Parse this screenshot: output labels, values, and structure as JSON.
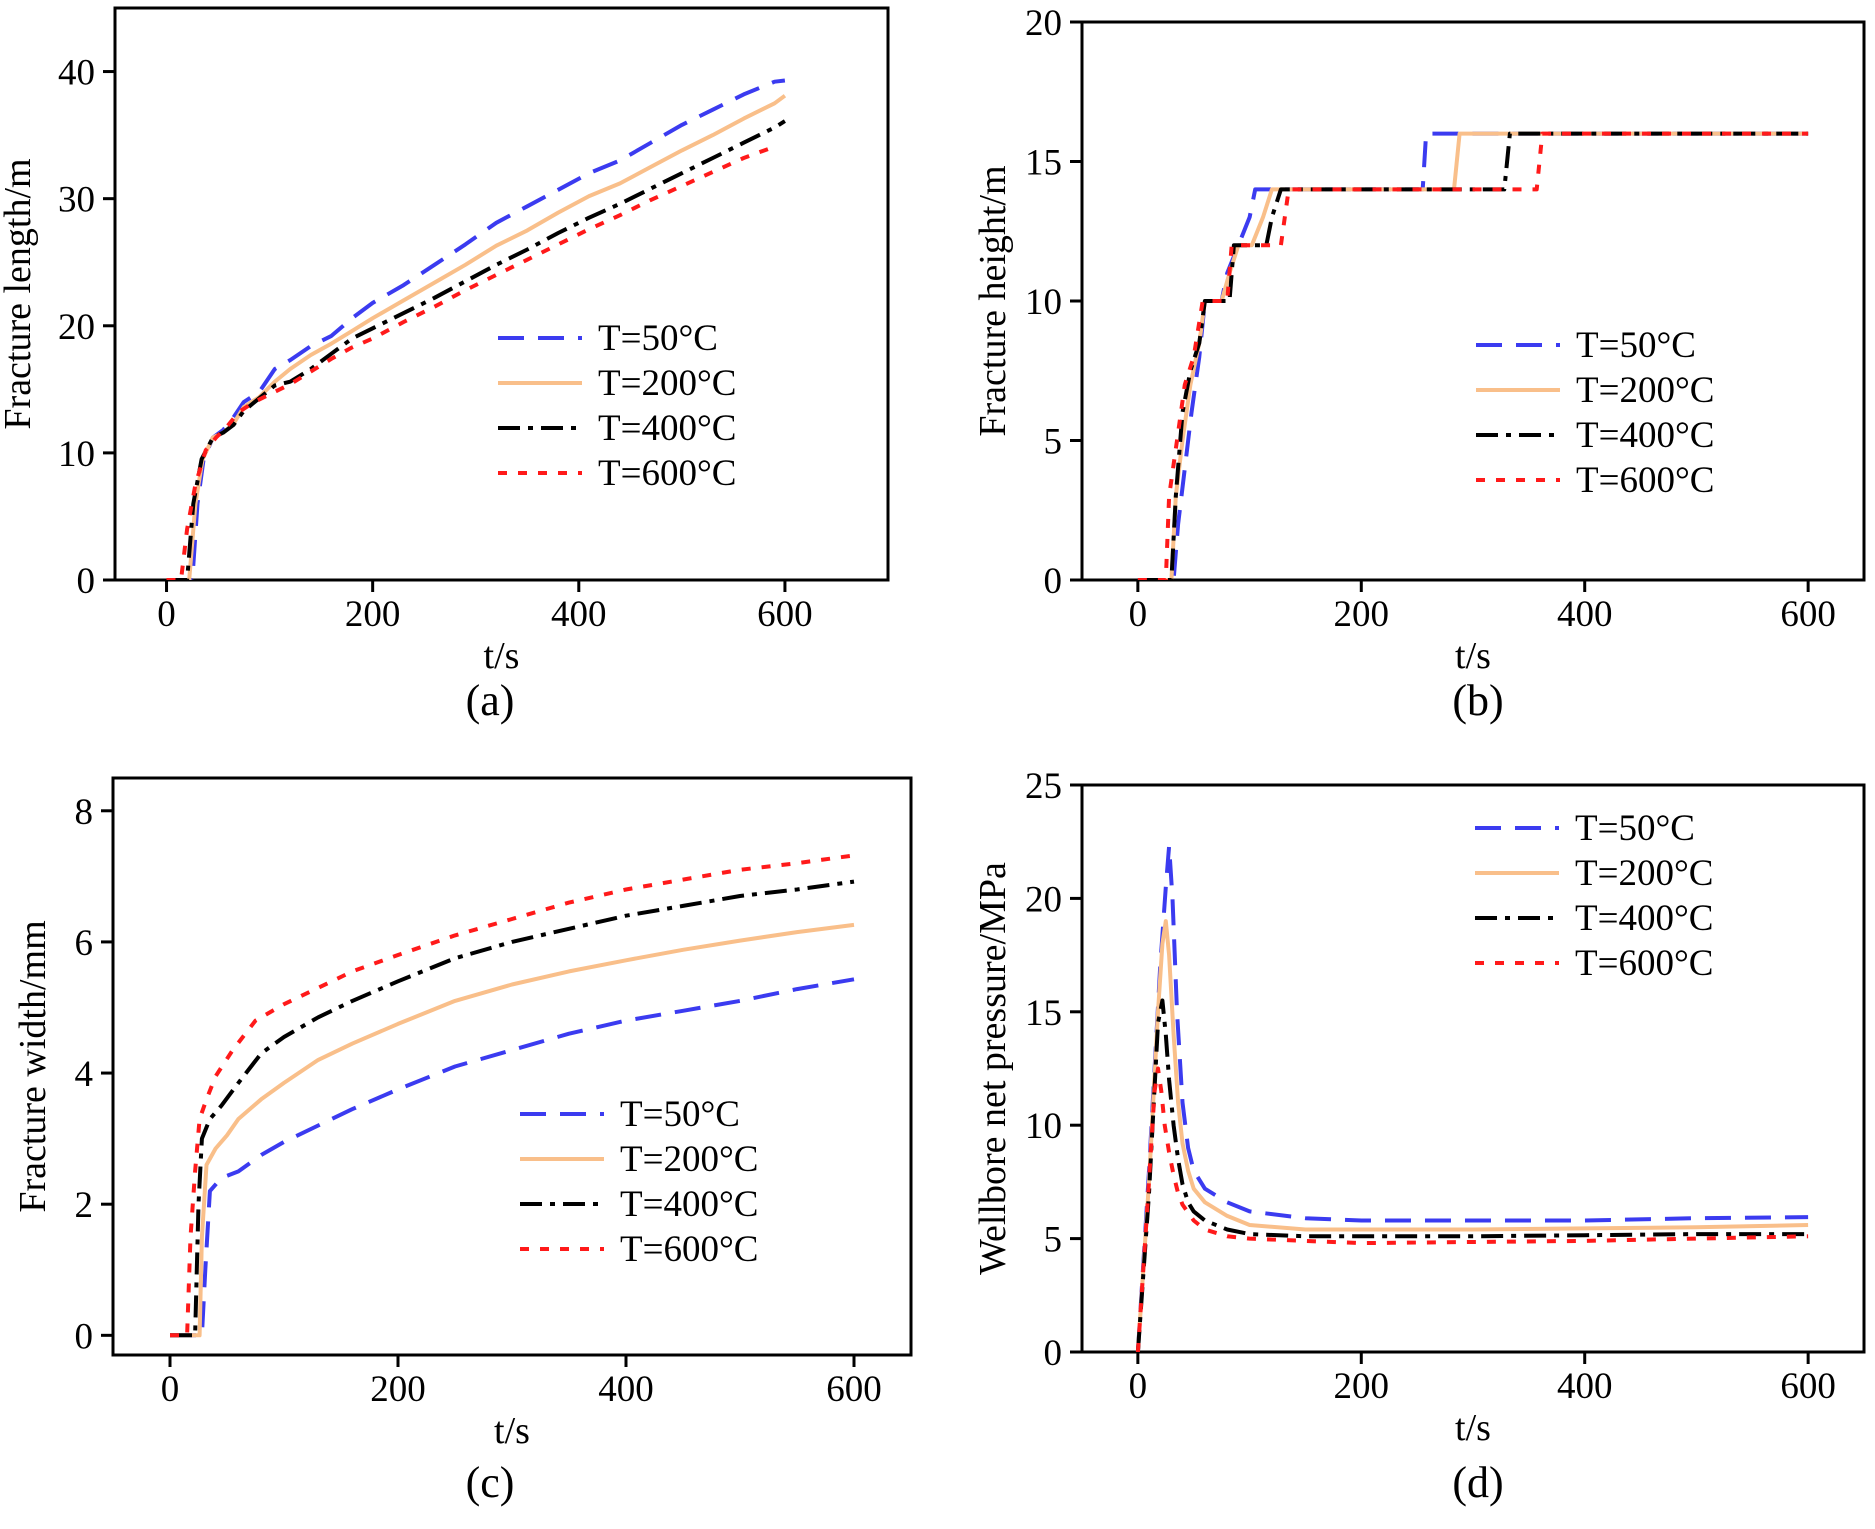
{
  "figure": {
    "panels": [
      "(a)",
      "(b)",
      "(c)",
      "(d)"
    ]
  },
  "legend_colors": {
    "T=50°C": "#3b3bf0",
    "T=200°C": "#f9bf8a",
    "T=400°C": "#000000",
    "T=600°C": "#ff1a1a"
  },
  "chart_data": [
    {
      "id": "a",
      "panel_label": "(a)",
      "type": "line",
      "title": "",
      "xlabel": "t/s",
      "ylabel": "Fracture length/m",
      "xlim": [
        -50,
        700
      ],
      "ylim": [
        0,
        45
      ],
      "xticks": [
        0,
        200,
        400,
        600
      ],
      "yticks": [
        0,
        10,
        20,
        30,
        40
      ],
      "grid": false,
      "legend_position": "lower-right",
      "series": [
        {
          "name": "T=50°C",
          "color": "#3b3bf0",
          "dash": "dash",
          "x": [
            0,
            25,
            30,
            36,
            45,
            55,
            65,
            75,
            90,
            105,
            120,
            140,
            160,
            180,
            200,
            230,
            260,
            290,
            320,
            350,
            380,
            410,
            440,
            470,
            500,
            530,
            560,
            590,
            600
          ],
          "y": [
            0,
            0,
            6,
            9.5,
            11.2,
            11.8,
            12.8,
            14,
            14.8,
            16.6,
            17.3,
            18.4,
            19.2,
            20.6,
            21.8,
            23.2,
            24.8,
            26.4,
            28.1,
            29.4,
            30.7,
            32,
            33,
            34.4,
            35.8,
            37,
            38.2,
            39.2,
            39.3
          ]
        },
        {
          "name": "T=200°C",
          "color": "#f9bf8a",
          "dash": "solid",
          "x": [
            0,
            22,
            28,
            35,
            45,
            55,
            65,
            75,
            90,
            105,
            120,
            140,
            160,
            180,
            200,
            230,
            260,
            290,
            320,
            350,
            380,
            410,
            440,
            470,
            500,
            530,
            560,
            590,
            600
          ],
          "y": [
            0,
            0,
            6,
            9.5,
            11.2,
            11.6,
            12.3,
            13.6,
            14.4,
            15.6,
            16.6,
            17.7,
            18.6,
            19.6,
            20.6,
            22,
            23.4,
            24.8,
            26.3,
            27.5,
            28.9,
            30.2,
            31.2,
            32.5,
            33.8,
            35,
            36.3,
            37.5,
            38.1
          ]
        },
        {
          "name": "T=400°C",
          "color": "#000000",
          "dash": "dashdot",
          "x": [
            0,
            20,
            26,
            34,
            45,
            55,
            65,
            75,
            90,
            105,
            120,
            140,
            160,
            180,
            200,
            230,
            260,
            290,
            320,
            350,
            380,
            410,
            440,
            470,
            500,
            530,
            560,
            590,
            600
          ],
          "y": [
            0,
            0,
            6,
            9.5,
            11.2,
            11.6,
            12.2,
            13.3,
            14.3,
            15.3,
            15.6,
            16.6,
            17.8,
            19,
            19.8,
            21,
            22.2,
            23.5,
            24.8,
            26,
            27.3,
            28.5,
            29.6,
            30.8,
            32,
            33.2,
            34.4,
            35.6,
            36.1
          ]
        },
        {
          "name": "T=600°C",
          "color": "#ff1a1a",
          "dash": "dot",
          "x": [
            0,
            14,
            20,
            28,
            38,
            48,
            58,
            70,
            85,
            100,
            120,
            140,
            160,
            180,
            200,
            230,
            260,
            290,
            320,
            350,
            380,
            410,
            440,
            470,
            500,
            530,
            560,
            590
          ],
          "y": [
            0,
            0,
            4,
            7.5,
            10.2,
            11.2,
            12,
            13.2,
            14,
            14.6,
            15.4,
            16.4,
            17.4,
            18.3,
            19,
            20.3,
            21.5,
            22.8,
            24,
            25.2,
            26.4,
            27.6,
            28.7,
            29.9,
            31,
            32.1,
            33.2,
            34.1
          ]
        }
      ]
    },
    {
      "id": "b",
      "panel_label": "(b)",
      "type": "line",
      "title": "",
      "xlabel": "t/s",
      "ylabel": "Fracture height/m",
      "xlim": [
        -50,
        650
      ],
      "ylim": [
        0,
        20
      ],
      "xticks": [
        0,
        200,
        400,
        600
      ],
      "yticks": [
        0,
        5,
        10,
        15,
        20
      ],
      "grid": false,
      "legend_position": "lower-right",
      "series": [
        {
          "name": "T=50°C",
          "color": "#3b3bf0",
          "dash": "dash",
          "x": [
            0,
            32,
            36,
            42,
            48,
            55,
            60,
            75,
            80,
            90,
            100,
            105,
            115,
            255,
            258,
            600
          ],
          "y": [
            0,
            0,
            2,
            4,
            6,
            8,
            10,
            10,
            11,
            12,
            13,
            14,
            14,
            14,
            16,
            16
          ]
        },
        {
          "name": "T=200°C",
          "color": "#f9bf8a",
          "dash": "solid",
          "x": [
            0,
            30,
            34,
            40,
            47,
            55,
            60,
            75,
            82,
            90,
            102,
            112,
            120,
            283,
            288,
            600
          ],
          "y": [
            0,
            0,
            3,
            5,
            7,
            8.5,
            10,
            10,
            11,
            12,
            12,
            13,
            14,
            14,
            16,
            16
          ]
        },
        {
          "name": "T=400°C",
          "color": "#000000",
          "dash": "dashdot",
          "x": [
            0,
            30,
            34,
            40,
            47,
            55,
            60,
            82,
            86,
            100,
            115,
            120,
            128,
            328,
            333,
            600
          ],
          "y": [
            0,
            0,
            3,
            6,
            7.5,
            8.5,
            10,
            10,
            12,
            12,
            12,
            13,
            14,
            14,
            16,
            16
          ]
        },
        {
          "name": "T=600°C",
          "color": "#ff1a1a",
          "dash": "dot",
          "x": [
            0,
            25,
            28,
            35,
            42,
            50,
            58,
            80,
            84,
            100,
            120,
            128,
            135,
            357,
            362,
            600
          ],
          "y": [
            0,
            0,
            3,
            5,
            7,
            8,
            10,
            10,
            12,
            12,
            12,
            12,
            14,
            14,
            16,
            16
          ]
        }
      ]
    },
    {
      "id": "c",
      "panel_label": "(c)",
      "type": "line",
      "title": "",
      "xlabel": "t/s",
      "ylabel": "Fracture width/mm",
      "xlim": [
        -50,
        650
      ],
      "ylim": [
        -0.3,
        8.5
      ],
      "xticks": [
        0,
        200,
        400,
        600
      ],
      "yticks": [
        0,
        2,
        4,
        6,
        8
      ],
      "grid": false,
      "legend_position": "lower-right",
      "series": [
        {
          "name": "T=50°C",
          "color": "#3b3bf0",
          "dash": "dash",
          "x": [
            0,
            28,
            31,
            35,
            45,
            60,
            80,
            100,
            130,
            160,
            200,
            250,
            300,
            350,
            400,
            450,
            500,
            550,
            600
          ],
          "y": [
            0,
            0,
            1,
            2.2,
            2.4,
            2.5,
            2.75,
            2.95,
            3.2,
            3.45,
            3.75,
            4.1,
            4.35,
            4.6,
            4.8,
            4.95,
            5.1,
            5.28,
            5.43
          ]
        },
        {
          "name": "T=200°C",
          "color": "#f9bf8a",
          "dash": "solid",
          "x": [
            0,
            26,
            28,
            32,
            40,
            50,
            60,
            80,
            100,
            130,
            160,
            200,
            250,
            300,
            350,
            400,
            450,
            500,
            550,
            600
          ],
          "y": [
            0,
            0,
            1.5,
            2.6,
            2.85,
            3.05,
            3.3,
            3.6,
            3.85,
            4.2,
            4.45,
            4.75,
            5.1,
            5.35,
            5.55,
            5.72,
            5.88,
            6.02,
            6.15,
            6.26
          ]
        },
        {
          "name": "T=400°C",
          "color": "#000000",
          "dash": "dashdot",
          "x": [
            0,
            22,
            25,
            28,
            35,
            45,
            60,
            80,
            100,
            130,
            160,
            200,
            250,
            300,
            350,
            400,
            450,
            500,
            550,
            600
          ],
          "y": [
            0,
            0,
            2,
            3.0,
            3.3,
            3.5,
            3.85,
            4.3,
            4.55,
            4.85,
            5.1,
            5.4,
            5.75,
            6.0,
            6.2,
            6.4,
            6.55,
            6.7,
            6.8,
            6.92
          ]
        },
        {
          "name": "T=600°C",
          "color": "#ff1a1a",
          "dash": "dot",
          "x": [
            0,
            15,
            18,
            22,
            26,
            32,
            40,
            55,
            75,
            100,
            130,
            160,
            200,
            250,
            300,
            350,
            400,
            450,
            500,
            550,
            600
          ],
          "y": [
            0,
            0,
            1.5,
            2.5,
            3.3,
            3.6,
            3.95,
            4.35,
            4.8,
            5.05,
            5.3,
            5.55,
            5.8,
            6.1,
            6.35,
            6.6,
            6.8,
            6.95,
            7.1,
            7.2,
            7.32
          ]
        }
      ]
    },
    {
      "id": "d",
      "panel_label": "(d)",
      "type": "line",
      "title": "",
      "xlabel": "t/s",
      "ylabel": "Wellbore net pressure/MPa",
      "xlim": [
        -50,
        650
      ],
      "ylim": [
        0,
        25
      ],
      "xticks": [
        0,
        200,
        400,
        600
      ],
      "yticks": [
        0,
        5,
        10,
        15,
        20,
        25
      ],
      "grid": false,
      "legend_position": "upper-right",
      "series": [
        {
          "name": "T=50°C",
          "color": "#3b3bf0",
          "dash": "dash",
          "x": [
            0,
            10,
            20,
            25,
            28,
            31,
            35,
            40,
            45,
            50,
            60,
            80,
            100,
            150,
            200,
            300,
            400,
            500,
            600
          ],
          "y": [
            0,
            8,
            17,
            20.5,
            22.3,
            20,
            15,
            11,
            9,
            8,
            7.2,
            6.6,
            6.2,
            5.9,
            5.8,
            5.8,
            5.8,
            5.9,
            5.95
          ]
        },
        {
          "name": "T=200°C",
          "color": "#f9bf8a",
          "dash": "solid",
          "x": [
            0,
            10,
            18,
            22,
            25,
            28,
            32,
            36,
            40,
            45,
            50,
            60,
            80,
            100,
            150,
            200,
            300,
            400,
            500,
            600
          ],
          "y": [
            0,
            7.5,
            15,
            18,
            19,
            17.5,
            14,
            11,
            9.2,
            8,
            7.2,
            6.6,
            6,
            5.6,
            5.4,
            5.4,
            5.4,
            5.45,
            5.5,
            5.6
          ]
        },
        {
          "name": "T=400°C",
          "color": "#000000",
          "dash": "dashdot",
          "x": [
            0,
            10,
            18,
            22,
            25,
            28,
            32,
            36,
            40,
            45,
            50,
            60,
            80,
            100,
            150,
            200,
            300,
            400,
            500,
            600
          ],
          "y": [
            0,
            7,
            14.5,
            15.5,
            14,
            12,
            10,
            8.5,
            7.4,
            6.6,
            6.2,
            5.8,
            5.4,
            5.2,
            5.1,
            5.1,
            5.1,
            5.15,
            5.2,
            5.2
          ]
        },
        {
          "name": "T=600°C",
          "color": "#ff1a1a",
          "dash": "dot",
          "x": [
            0,
            8,
            15,
            18,
            21,
            24,
            28,
            32,
            36,
            40,
            50,
            60,
            80,
            100,
            150,
            200,
            300,
            400,
            500,
            600
          ],
          "y": [
            0,
            6,
            11.5,
            12.5,
            11.5,
            10,
            8.8,
            7.8,
            7,
            6.5,
            5.8,
            5.4,
            5.1,
            5,
            4.9,
            4.8,
            4.85,
            4.9,
            5,
            5.1
          ]
        }
      ]
    }
  ]
}
